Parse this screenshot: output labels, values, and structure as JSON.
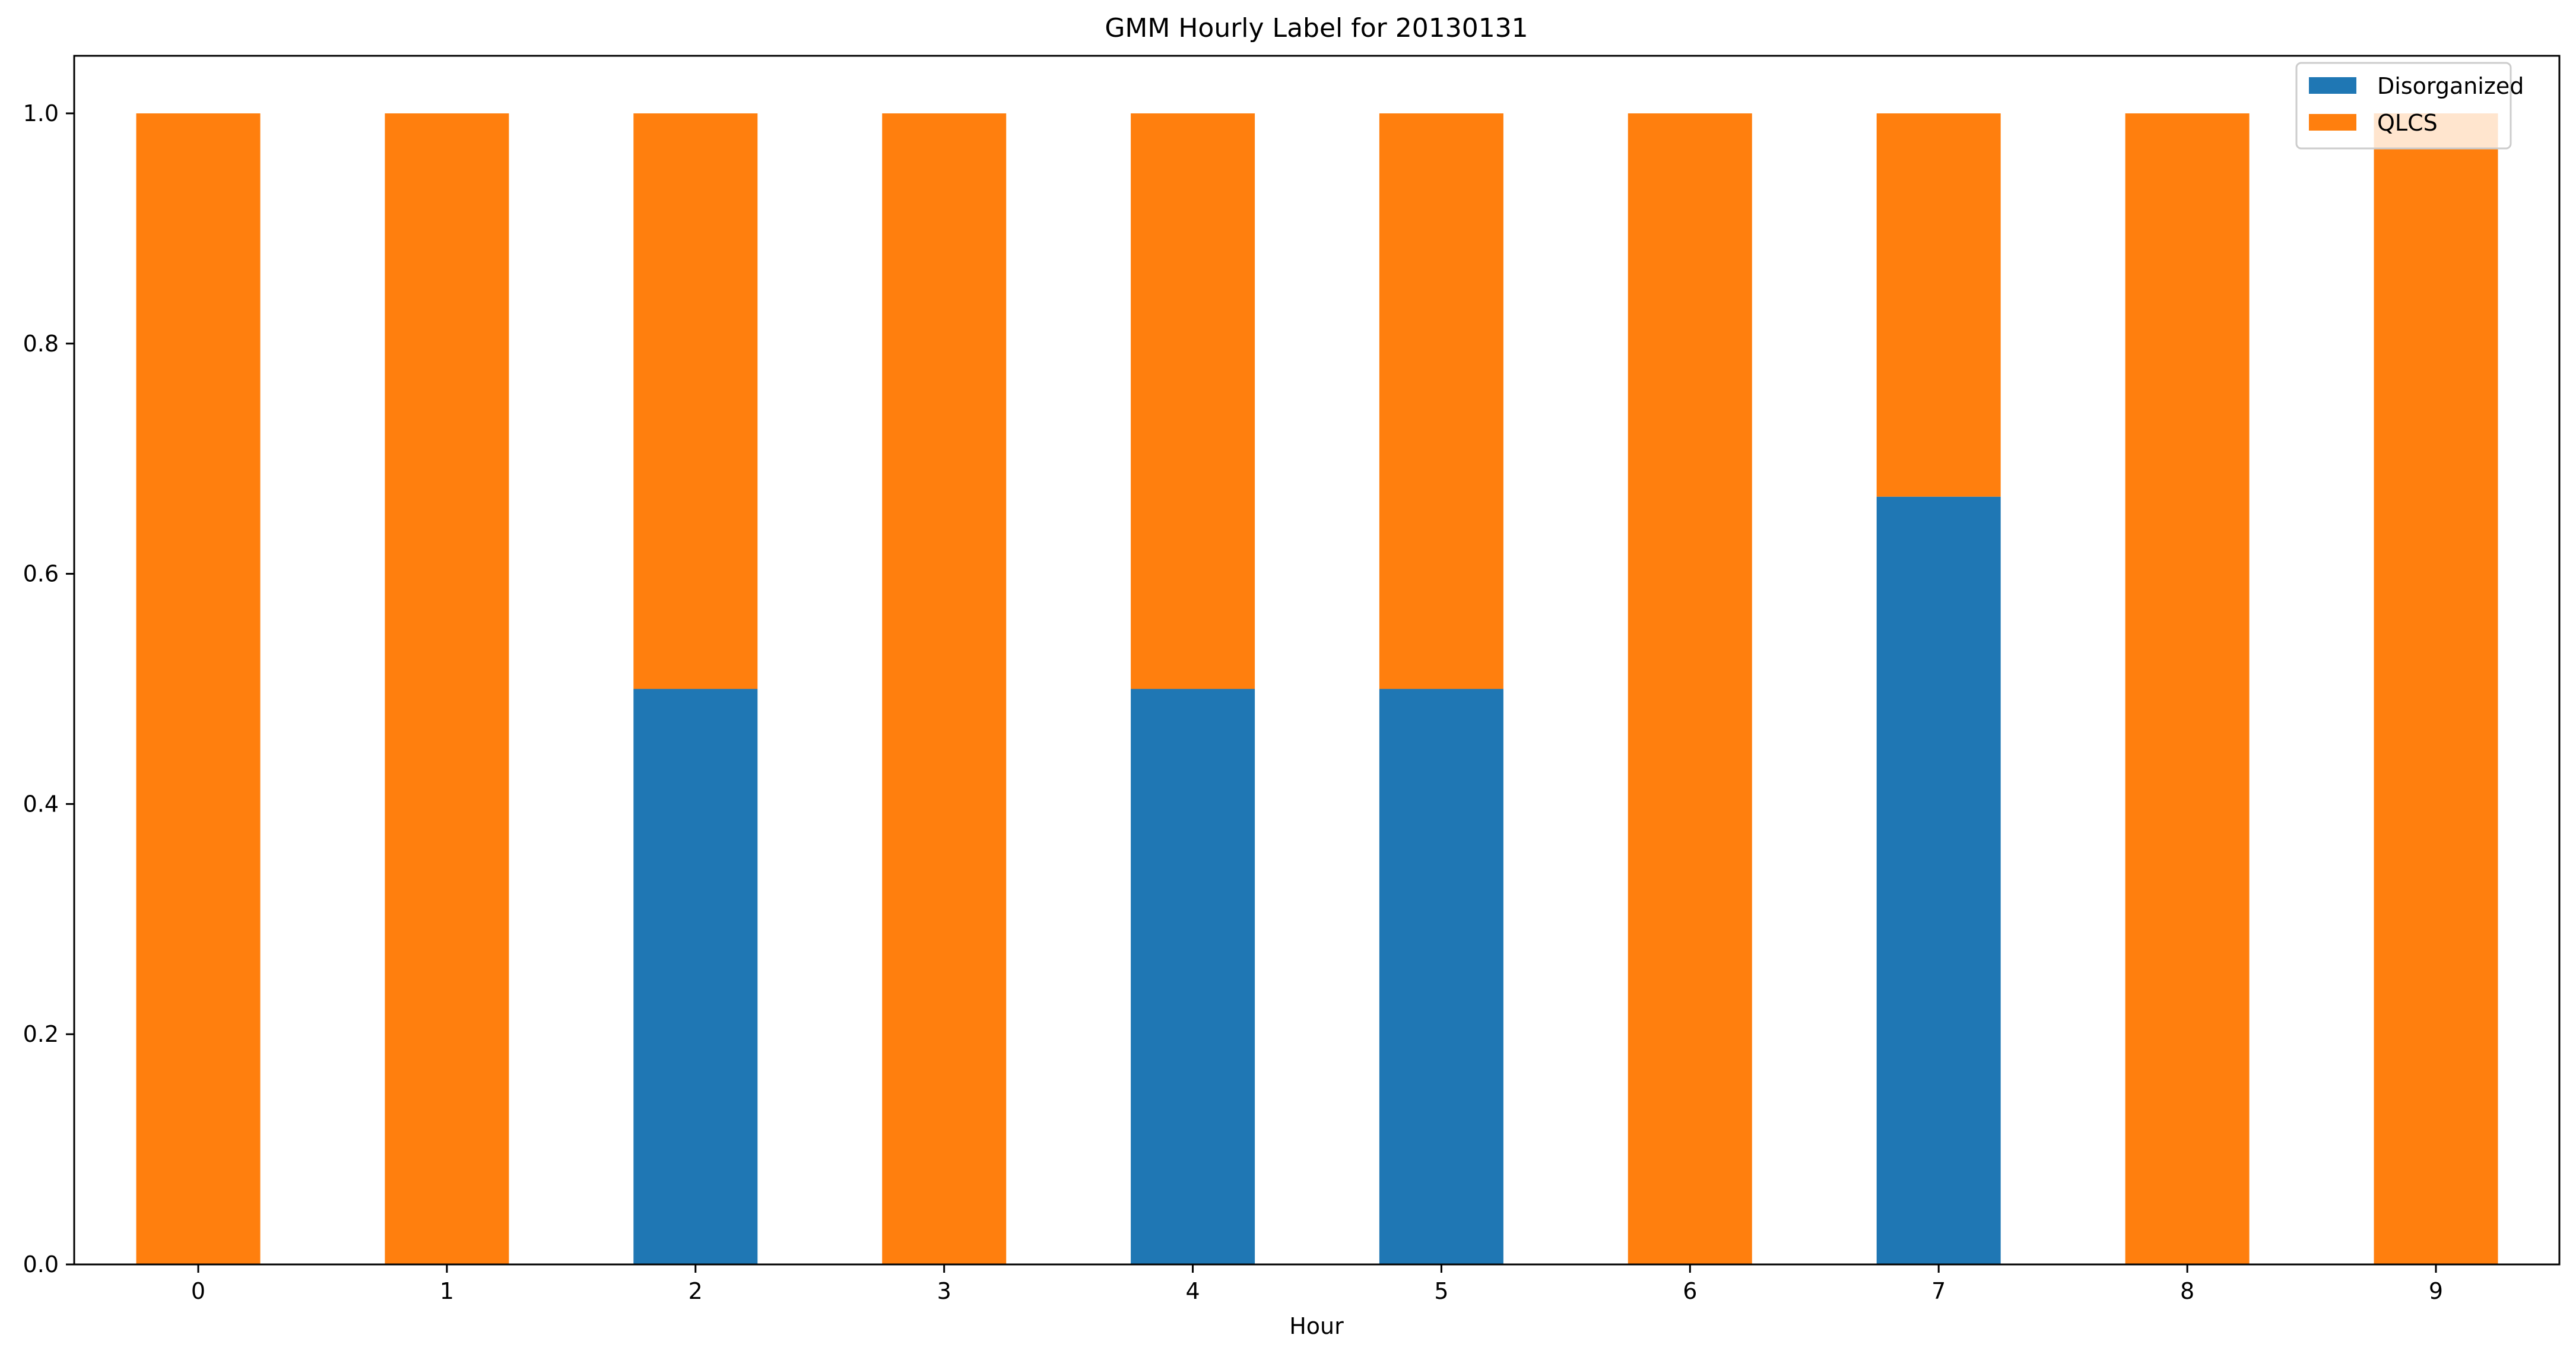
{
  "chart_data": {
    "type": "bar",
    "stacked": true,
    "title": "GMM Hourly Label for 20130131",
    "xlabel": "Hour",
    "ylabel": "",
    "categories": [
      "0",
      "1",
      "2",
      "3",
      "4",
      "5",
      "6",
      "7",
      "8",
      "9"
    ],
    "series": [
      {
        "name": "Disorganized",
        "color": "#1f77b4",
        "values": [
          0,
          0,
          0.5,
          0,
          0.5,
          0.5,
          0,
          0.667,
          0,
          0
        ]
      },
      {
        "name": "QLCS",
        "color": "#ff7f0e",
        "values": [
          1,
          1,
          0.5,
          1,
          0.5,
          0.5,
          1,
          0.333,
          1,
          1
        ]
      }
    ],
    "ylim": [
      0,
      1.05
    ],
    "yticks": [
      "0.0",
      "0.2",
      "0.4",
      "0.6",
      "0.8",
      "1.0"
    ],
    "grid": false,
    "legend_position": "top-right"
  }
}
